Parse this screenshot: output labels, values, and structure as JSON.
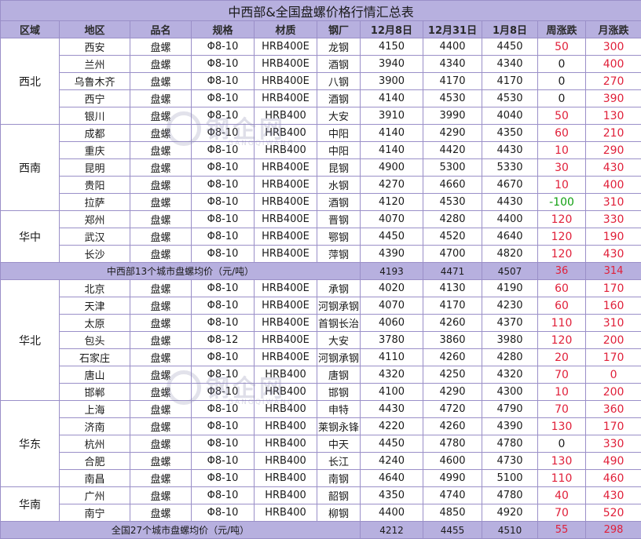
{
  "title": "中西部&全国盘螺价格行情汇总表",
  "headers": [
    "区域",
    "地区",
    "品名",
    "规格",
    "材质",
    "钢厂",
    "12月8日",
    "12月31日",
    "1月8日",
    "周涨跌",
    "月涨跌"
  ],
  "regions": [
    {
      "name": "西北",
      "rows": [
        {
          "city": "西安",
          "product": "盘螺",
          "spec": "Φ8-10",
          "material": "HRB400E",
          "mill": "龙钢",
          "p1": "4150",
          "p2": "4400",
          "p3": "4450",
          "week": "50",
          "month": "300",
          "week_color": "red"
        },
        {
          "city": "兰州",
          "product": "盘螺",
          "spec": "Φ8-10",
          "material": "HRB400E",
          "mill": "酒钢",
          "p1": "3940",
          "p2": "4340",
          "p3": "4340",
          "week": "0",
          "month": "400",
          "week_color": "black"
        },
        {
          "city": "乌鲁木齐",
          "product": "盘螺",
          "spec": "Φ8-10",
          "material": "HRB400E",
          "mill": "八钢",
          "p1": "3900",
          "p2": "4170",
          "p3": "4170",
          "week": "0",
          "month": "270",
          "week_color": "black"
        },
        {
          "city": "西宁",
          "product": "盘螺",
          "spec": "Φ8-10",
          "material": "HRB400E",
          "mill": "酒钢",
          "p1": "4140",
          "p2": "4530",
          "p3": "4530",
          "week": "0",
          "month": "390",
          "week_color": "black"
        },
        {
          "city": "银川",
          "product": "盘螺",
          "spec": "Φ8-10",
          "material": "HRB400",
          "mill": "大安",
          "p1": "3910",
          "p2": "3990",
          "p3": "4040",
          "week": "50",
          "month": "130",
          "week_color": "red"
        }
      ]
    },
    {
      "name": "西南",
      "rows": [
        {
          "city": "成都",
          "product": "盘螺",
          "spec": "Φ8-10",
          "material": "HRB400",
          "mill": "中阳",
          "p1": "4140",
          "p2": "4290",
          "p3": "4350",
          "week": "60",
          "month": "210",
          "week_color": "red"
        },
        {
          "city": "重庆",
          "product": "盘螺",
          "spec": "Φ8-10",
          "material": "HRB400",
          "mill": "中阳",
          "p1": "4140",
          "p2": "4420",
          "p3": "4430",
          "week": "10",
          "month": "290",
          "week_color": "red"
        },
        {
          "city": "昆明",
          "product": "盘螺",
          "spec": "Φ8-10",
          "material": "HRB400E",
          "mill": "昆钢",
          "p1": "4900",
          "p2": "5300",
          "p3": "5330",
          "week": "30",
          "month": "430",
          "week_color": "red"
        },
        {
          "city": "贵阳",
          "product": "盘螺",
          "spec": "Φ8-10",
          "material": "HRB400E",
          "mill": "水钢",
          "p1": "4270",
          "p2": "4660",
          "p3": "4670",
          "week": "10",
          "month": "400",
          "week_color": "red"
        },
        {
          "city": "拉萨",
          "product": "盘螺",
          "spec": "Φ8-10",
          "material": "HRB400E",
          "mill": "酒钢",
          "p1": "4120",
          "p2": "4530",
          "p3": "4430",
          "week": "-100",
          "month": "310",
          "week_color": "green"
        }
      ]
    },
    {
      "name": "华中",
      "rows": [
        {
          "city": "郑州",
          "product": "盘螺",
          "spec": "Φ8-10",
          "material": "HRB400E",
          "mill": "晋钢",
          "p1": "4070",
          "p2": "4280",
          "p3": "4400",
          "week": "120",
          "month": "330",
          "week_color": "red"
        },
        {
          "city": "武汉",
          "product": "盘螺",
          "spec": "Φ8-10",
          "material": "HRB400E",
          "mill": "鄂钢",
          "p1": "4450",
          "p2": "4520",
          "p3": "4640",
          "week": "120",
          "month": "190",
          "week_color": "red"
        },
        {
          "city": "长沙",
          "product": "盘螺",
          "spec": "Φ8-10",
          "material": "HRB400E",
          "mill": "萍钢",
          "p1": "4390",
          "p2": "4700",
          "p3": "4820",
          "week": "120",
          "month": "430",
          "week_color": "red"
        }
      ]
    }
  ],
  "avg_mid": {
    "label": "中西部13个城市盘螺均价（元/吨）",
    "p1": "4193",
    "p2": "4471",
    "p3": "4507",
    "week": "36",
    "month": "314"
  },
  "regions2": [
    {
      "name": "华北",
      "rows": [
        {
          "city": "北京",
          "product": "盘螺",
          "spec": "Φ8-10",
          "material": "HRB400E",
          "mill": "承钢",
          "p1": "4020",
          "p2": "4130",
          "p3": "4190",
          "week": "60",
          "month": "170",
          "week_color": "red"
        },
        {
          "city": "天津",
          "product": "盘螺",
          "spec": "Φ8-10",
          "material": "HRB400E",
          "mill": "河钢承钢",
          "p1": "4070",
          "p2": "4170",
          "p3": "4230",
          "week": "60",
          "month": "160",
          "week_color": "red"
        },
        {
          "city": "太原",
          "product": "盘螺",
          "spec": "Φ8-10",
          "material": "HRB400E",
          "mill": "首钢长治",
          "p1": "4060",
          "p2": "4260",
          "p3": "4370",
          "week": "110",
          "month": "310",
          "week_color": "red"
        },
        {
          "city": "包头",
          "product": "盘螺",
          "spec": "Φ8-12",
          "material": "HRB400E",
          "mill": "大安",
          "p1": "3780",
          "p2": "3860",
          "p3": "3980",
          "week": "120",
          "month": "200",
          "week_color": "red"
        },
        {
          "city": "石家庄",
          "product": "盘螺",
          "spec": "Φ8-10",
          "material": "HRB400E",
          "mill": "河钢承钢",
          "p1": "4110",
          "p2": "4260",
          "p3": "4280",
          "week": "20",
          "month": "170",
          "week_color": "red"
        },
        {
          "city": "唐山",
          "product": "盘螺",
          "spec": "Φ8-10",
          "material": "HRB400",
          "mill": "唐钢",
          "p1": "4320",
          "p2": "4250",
          "p3": "4320",
          "week": "70",
          "month": "0",
          "week_color": "red"
        },
        {
          "city": "邯郸",
          "product": "盘螺",
          "spec": "Φ8-10",
          "material": "HRB400",
          "mill": "邯钢",
          "p1": "4100",
          "p2": "4290",
          "p3": "4300",
          "week": "10",
          "month": "200",
          "week_color": "red"
        }
      ]
    },
    {
      "name": "华东",
      "rows": [
        {
          "city": "上海",
          "product": "盘螺",
          "spec": "Φ8-10",
          "material": "HRB400",
          "mill": "申特",
          "p1": "4430",
          "p2": "4720",
          "p3": "4790",
          "week": "70",
          "month": "360",
          "week_color": "red"
        },
        {
          "city": "济南",
          "product": "盘螺",
          "spec": "Φ8-10",
          "material": "HRB400",
          "mill": "莱钢永锋",
          "p1": "4220",
          "p2": "4260",
          "p3": "4390",
          "week": "130",
          "month": "170",
          "week_color": "red"
        },
        {
          "city": "杭州",
          "product": "盘螺",
          "spec": "Φ8-10",
          "material": "HRB400",
          "mill": "中天",
          "p1": "4450",
          "p2": "4780",
          "p3": "4780",
          "week": "0",
          "month": "330",
          "week_color": "black"
        },
        {
          "city": "合肥",
          "product": "盘螺",
          "spec": "Φ8-10",
          "material": "HRB400",
          "mill": "长江",
          "p1": "4240",
          "p2": "4600",
          "p3": "4730",
          "week": "130",
          "month": "490",
          "week_color": "red"
        },
        {
          "city": "南昌",
          "product": "盘螺",
          "spec": "Φ8-10",
          "material": "HRB400",
          "mill": "南钢",
          "p1": "4640",
          "p2": "4990",
          "p3": "5100",
          "week": "110",
          "month": "460",
          "week_color": "red"
        }
      ]
    },
    {
      "name": "华南",
      "rows": [
        {
          "city": "广州",
          "product": "盘螺",
          "spec": "Φ8-10",
          "material": "HRB400",
          "mill": "韶钢",
          "p1": "4350",
          "p2": "4740",
          "p3": "4780",
          "week": "40",
          "month": "430",
          "week_color": "red"
        },
        {
          "city": "南宁",
          "product": "盘螺",
          "spec": "Φ8-10",
          "material": "HRB400",
          "mill": "柳钢",
          "p1": "4400",
          "p2": "4850",
          "p3": "4920",
          "week": "70",
          "month": "520",
          "week_color": "red"
        }
      ]
    }
  ],
  "avg_all": {
    "label": "全国27个城市盘螺均价（元/吨）",
    "p1": "4212",
    "p2": "4455",
    "p3": "4510",
    "week": "55",
    "month": "298"
  },
  "watermark": {
    "text": "钢企网",
    "sub": "GANGQIWANG"
  },
  "colors": {
    "header_bg": "#b7b0df",
    "border": "#9a8fc8",
    "up": "#e0203a",
    "down": "#12a012"
  }
}
